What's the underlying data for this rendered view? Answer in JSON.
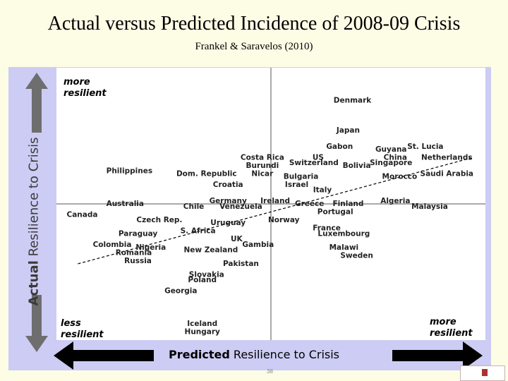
{
  "slide": {
    "title": "Actual versus Predicted Incidence of 2008-09 Crisis",
    "subtitle": "Frankel & Saravelos (2010)",
    "page_number": "38"
  },
  "colors": {
    "panel": "#ccccf4",
    "plot_bg": "#ffffff",
    "arrow": "#000000",
    "y_arrow": "#6e6e6e",
    "trend": "#000000"
  },
  "chart_data": {
    "type": "scatter",
    "title": "",
    "xlabel_bold": "Predicted",
    "xlabel_rest": " Resilience to Crisis",
    "ylabel_bold": "Actual",
    "ylabel_rest": " Resilience to Crisis",
    "corners": {
      "top_left": [
        "more",
        "resilient"
      ],
      "bottom_left": [
        "less",
        "resilient"
      ],
      "bottom_right": [
        "more",
        "resilient"
      ]
    },
    "xlim": [
      0,
      100
    ],
    "ylim": [
      0,
      100
    ],
    "grid": "quadrant lines at x=50, y=50",
    "trendline": {
      "style": "dashed",
      "points": [
        [
          5,
          28
        ],
        [
          97,
          67
        ]
      ]
    },
    "points": [
      {
        "label": "Denmark",
        "x": 69,
        "y": 88
      },
      {
        "label": "Japan",
        "x": 68,
        "y": 77
      },
      {
        "label": "Gabon",
        "x": 66,
        "y": 71
      },
      {
        "label": "Guyana",
        "x": 78,
        "y": 70
      },
      {
        "label": "St. Lucia",
        "x": 86,
        "y": 71
      },
      {
        "label": "China",
        "x": 79,
        "y": 67
      },
      {
        "label": "Netherlands",
        "x": 91,
        "y": 67
      },
      {
        "label": "Costa Rica",
        "x": 48,
        "y": 67
      },
      {
        "label": "US",
        "x": 61,
        "y": 67
      },
      {
        "label": "Switzerland",
        "x": 60,
        "y": 65
      },
      {
        "label": "Bolivia",
        "x": 70,
        "y": 64
      },
      {
        "label": "Singapore",
        "x": 78,
        "y": 65
      },
      {
        "label": "Burundi",
        "x": 48,
        "y": 64
      },
      {
        "label": "Nicar",
        "x": 48,
        "y": 61
      },
      {
        "label": "Bulgaria",
        "x": 57,
        "y": 60
      },
      {
        "label": "Morocco",
        "x": 80,
        "y": 60
      },
      {
        "label": "Saudi Arabia",
        "x": 91,
        "y": 61
      },
      {
        "label": "Philippines",
        "x": 17,
        "y": 62
      },
      {
        "label": "Dom. Republic",
        "x": 35,
        "y": 61
      },
      {
        "label": "Croatia",
        "x": 40,
        "y": 57
      },
      {
        "label": "Israel",
        "x": 56,
        "y": 57
      },
      {
        "label": "Italy",
        "x": 62,
        "y": 55
      },
      {
        "label": "Australia",
        "x": 16,
        "y": 50
      },
      {
        "label": "Chile",
        "x": 32,
        "y": 49
      },
      {
        "label": "Germany",
        "x": 40,
        "y": 51
      },
      {
        "label": "Ireland",
        "x": 51,
        "y": 51
      },
      {
        "label": "Venezuela",
        "x": 43,
        "y": 49
      },
      {
        "label": "Greece",
        "x": 59,
        "y": 50
      },
      {
        "label": "Finland",
        "x": 68,
        "y": 50
      },
      {
        "label": "Algeria",
        "x": 79,
        "y": 51
      },
      {
        "label": "Malaysia",
        "x": 87,
        "y": 49
      },
      {
        "label": "Portugal",
        "x": 65,
        "y": 47
      },
      {
        "label": "Canada",
        "x": 6,
        "y": 46
      },
      {
        "label": "Czech Rep.",
        "x": 24,
        "y": 44
      },
      {
        "label": "Uruguay",
        "x": 40,
        "y": 43
      },
      {
        "label": "Norway",
        "x": 53,
        "y": 44
      },
      {
        "label": "S. Africa",
        "x": 33,
        "y": 40
      },
      {
        "label": "France",
        "x": 63,
        "y": 41
      },
      {
        "label": "Paraguay",
        "x": 19,
        "y": 39
      },
      {
        "label": "Luxembourg",
        "x": 67,
        "y": 39
      },
      {
        "label": "UK",
        "x": 42,
        "y": 37
      },
      {
        "label": "Colombia",
        "x": 13,
        "y": 35
      },
      {
        "label": "Nigeria",
        "x": 22,
        "y": 34
      },
      {
        "label": "Gambia",
        "x": 47,
        "y": 35
      },
      {
        "label": "Malawi",
        "x": 67,
        "y": 34
      },
      {
        "label": "New Zealand",
        "x": 36,
        "y": 33
      },
      {
        "label": "Romania",
        "x": 18,
        "y": 32
      },
      {
        "label": "Sweden",
        "x": 70,
        "y": 31
      },
      {
        "label": "Russia",
        "x": 19,
        "y": 29
      },
      {
        "label": "Pakistan",
        "x": 43,
        "y": 28
      },
      {
        "label": "Slovakia",
        "x": 35,
        "y": 24
      },
      {
        "label": "Poland",
        "x": 34,
        "y": 22
      },
      {
        "label": "Georgia",
        "x": 29,
        "y": 18
      },
      {
        "label": "Iceland",
        "x": 34,
        "y": 6
      },
      {
        "label": "Hungary",
        "x": 34,
        "y": 3
      }
    ]
  }
}
